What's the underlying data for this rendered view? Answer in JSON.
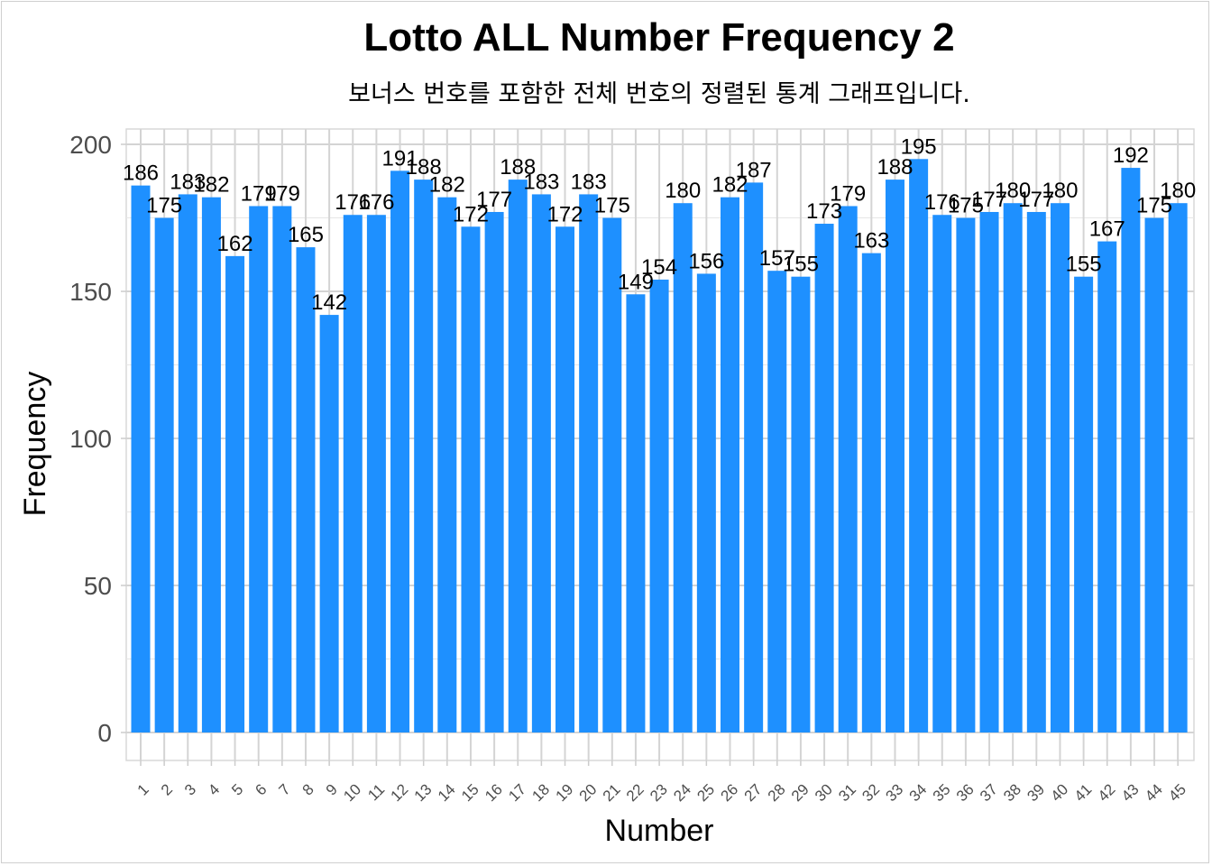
{
  "chart_data": {
    "type": "bar",
    "title": "Lotto ALL Number Frequency 2",
    "subtitle": "보너스 번호를 포함한 전체 번호의 정렬된 통계 그래프입니다.",
    "xlabel": "Number",
    "ylabel": "Frequency",
    "ylim": [
      0,
      200
    ],
    "yticks": [
      0,
      50,
      100,
      150,
      200
    ],
    "grid": true,
    "bar_color": "#1E90FF",
    "categories": [
      "1",
      "2",
      "3",
      "4",
      "5",
      "6",
      "7",
      "8",
      "9",
      "10",
      "11",
      "12",
      "13",
      "14",
      "15",
      "16",
      "17",
      "18",
      "19",
      "20",
      "21",
      "22",
      "23",
      "24",
      "25",
      "26",
      "27",
      "28",
      "29",
      "30",
      "31",
      "32",
      "33",
      "34",
      "35",
      "36",
      "37",
      "38",
      "39",
      "40",
      "41",
      "42",
      "43",
      "44",
      "45"
    ],
    "values": [
      186,
      175,
      183,
      182,
      162,
      179,
      179,
      165,
      142,
      176,
      176,
      191,
      188,
      182,
      172,
      177,
      188,
      183,
      172,
      183,
      175,
      149,
      154,
      180,
      156,
      182,
      187,
      157,
      155,
      173,
      179,
      163,
      188,
      195,
      176,
      175,
      177,
      180,
      177,
      180,
      155,
      167,
      192,
      175,
      180
    ]
  }
}
